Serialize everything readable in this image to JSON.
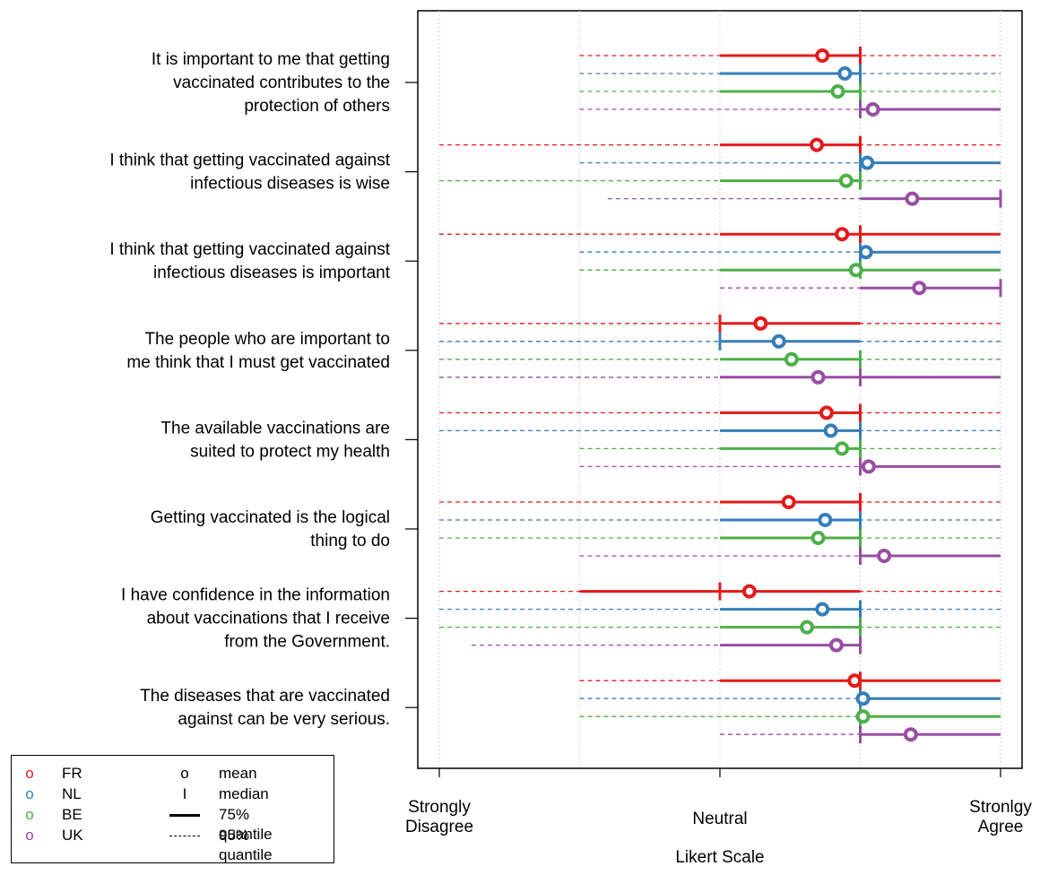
{
  "chart_data": {
    "type": "interval",
    "xlabel": "Likert Scale",
    "xlim": [
      1,
      5
    ],
    "x_ticks": [
      {
        "value": 1,
        "label": [
          "Strongly",
          "Disagree"
        ]
      },
      {
        "value": 3,
        "label": [
          "Neutral"
        ]
      },
      {
        "value": 5,
        "label": [
          "Stronlgy",
          "Agree"
        ]
      }
    ],
    "grid_x": [
      1,
      2,
      3,
      4,
      5
    ],
    "series": [
      {
        "name": "FR",
        "color": "#e41a1c"
      },
      {
        "name": "NL",
        "color": "#377eb8"
      },
      {
        "name": "BE",
        "color": "#4daf4a"
      },
      {
        "name": "UK",
        "color": "#984ea3"
      }
    ],
    "items": [
      {
        "label": [
          "It is important to me that getting",
          "vaccinated contributes to the",
          "protection of others"
        ],
        "data": [
          {
            "mean": 3.73,
            "median": 4,
            "q75": [
              3,
              4
            ],
            "q95": [
              2,
              5
            ]
          },
          {
            "mean": 3.89,
            "median": 4,
            "q75": [
              3,
              4
            ],
            "q95": [
              2,
              5
            ]
          },
          {
            "mean": 3.84,
            "median": 4,
            "q75": [
              3,
              4
            ],
            "q95": [
              2,
              5
            ]
          },
          {
            "mean": 4.09,
            "median": 4,
            "q75": [
              4,
              5
            ],
            "q95": [
              2,
              5
            ]
          }
        ]
      },
      {
        "label": [
          "I think that getting vaccinated against",
          "infectious diseases is wise"
        ],
        "data": [
          {
            "mean": 3.69,
            "median": 4,
            "q75": [
              3,
              4
            ],
            "q95": [
              1,
              5
            ]
          },
          {
            "mean": 4.05,
            "median": 4,
            "q75": [
              4,
              5
            ],
            "q95": [
              2,
              5
            ]
          },
          {
            "mean": 3.9,
            "median": 4,
            "q75": [
              3,
              4
            ],
            "q95": [
              1,
              5
            ]
          },
          {
            "mean": 4.37,
            "median": 5,
            "q75": [
              4,
              5
            ],
            "q95": [
              2.2,
              5
            ]
          }
        ]
      },
      {
        "label": [
          "I think that getting vaccinated against",
          "infectious diseases is important"
        ],
        "data": [
          {
            "mean": 3.87,
            "median": 4,
            "q75": [
              3,
              5
            ],
            "q95": [
              1,
              5
            ]
          },
          {
            "mean": 4.04,
            "median": 4,
            "q75": [
              4,
              5
            ],
            "q95": [
              2,
              5
            ]
          },
          {
            "mean": 3.97,
            "median": 4,
            "q75": [
              3,
              5
            ],
            "q95": [
              2,
              5
            ]
          },
          {
            "mean": 4.42,
            "median": 5,
            "q75": [
              4,
              5
            ],
            "q95": [
              3,
              5
            ]
          }
        ]
      },
      {
        "label": [
          "The people who are important to",
          "me think that I must get vaccinated"
        ],
        "data": [
          {
            "mean": 3.29,
            "median": 3,
            "q75": [
              3,
              4
            ],
            "q95": [
              1,
              5
            ]
          },
          {
            "mean": 3.42,
            "median": 3,
            "q75": [
              3,
              4
            ],
            "q95": [
              1,
              5
            ]
          },
          {
            "mean": 3.51,
            "median": 4,
            "q75": [
              3,
              4
            ],
            "q95": [
              1,
              5
            ]
          },
          {
            "mean": 3.7,
            "median": 4,
            "q75": [
              3,
              5
            ],
            "q95": [
              1,
              5
            ]
          }
        ]
      },
      {
        "label": [
          "The available vaccinations are",
          "suited to protect my health"
        ],
        "data": [
          {
            "mean": 3.76,
            "median": 4,
            "q75": [
              3,
              4
            ],
            "q95": [
              1,
              5
            ]
          },
          {
            "mean": 3.79,
            "median": 4,
            "q75": [
              3,
              4
            ],
            "q95": [
              1,
              5
            ]
          },
          {
            "mean": 3.87,
            "median": 4,
            "q75": [
              3,
              4
            ],
            "q95": [
              2,
              5
            ]
          },
          {
            "mean": 4.06,
            "median": 4,
            "q75": [
              4,
              5
            ],
            "q95": [
              2,
              5
            ]
          }
        ]
      },
      {
        "label": [
          "Getting vaccinated is the logical",
          "thing to do"
        ],
        "data": [
          {
            "mean": 3.49,
            "median": 4,
            "q75": [
              3,
              4
            ],
            "q95": [
              1,
              5
            ]
          },
          {
            "mean": 3.75,
            "median": 4,
            "q75": [
              3,
              4
            ],
            "q95": [
              1,
              5
            ]
          },
          {
            "mean": 3.7,
            "median": 4,
            "q75": [
              3,
              4
            ],
            "q95": [
              1,
              5
            ]
          },
          {
            "mean": 4.17,
            "median": 4,
            "q75": [
              4,
              5
            ],
            "q95": [
              2,
              5
            ]
          }
        ]
      },
      {
        "label": [
          "I have confidence in the information",
          "about vaccinations that I receive",
          "from the Government."
        ],
        "data": [
          {
            "mean": 3.21,
            "median": 3,
            "q75": [
              2,
              4
            ],
            "q95": [
              1,
              5
            ]
          },
          {
            "mean": 3.73,
            "median": 4,
            "q75": [
              3,
              4
            ],
            "q95": [
              1,
              5
            ]
          },
          {
            "mean": 3.62,
            "median": 4,
            "q75": [
              3,
              4
            ],
            "q95": [
              1,
              5
            ]
          },
          {
            "mean": 3.83,
            "median": 4,
            "q75": [
              3,
              4
            ],
            "q95": [
              1.23,
              4
            ]
          }
        ]
      },
      {
        "label": [
          "The diseases that are vaccinated",
          "against can be very serious."
        ],
        "data": [
          {
            "mean": 3.96,
            "median": 4,
            "q75": [
              3,
              5
            ],
            "q95": [
              2,
              5
            ]
          },
          {
            "mean": 4.02,
            "median": 4,
            "q75": [
              4,
              5
            ],
            "q95": [
              2,
              5
            ]
          },
          {
            "mean": 4.02,
            "median": 4,
            "q75": [
              4,
              5
            ],
            "q95": [
              2,
              5
            ]
          },
          {
            "mean": 4.36,
            "median": 4,
            "q75": [
              4,
              5
            ],
            "q95": [
              3,
              5
            ]
          }
        ]
      }
    ]
  },
  "legend": {
    "series": [
      {
        "symbol": "o",
        "label": "FR",
        "color": "#e41a1c"
      },
      {
        "symbol": "o",
        "label": "NL",
        "color": "#377eb8"
      },
      {
        "symbol": "o",
        "label": "BE",
        "color": "#4daf4a"
      },
      {
        "symbol": "o",
        "label": "UK",
        "color": "#984ea3"
      }
    ],
    "mean_symbol": "o",
    "mean_label": "mean",
    "median_symbol": "I",
    "median_label": "median",
    "q75_label": "75% quantile",
    "q95_label": "95% quantile"
  }
}
